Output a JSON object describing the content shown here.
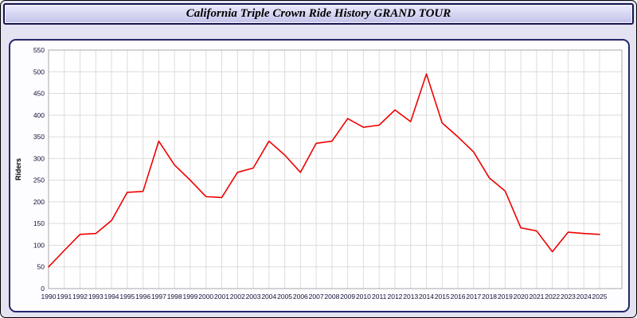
{
  "header": {
    "title": "California Triple Crown Ride History GRAND TOUR"
  },
  "colors": {
    "page_background": "#e3e3f2",
    "panel_border": "#26266b",
    "line": "#ee0000",
    "grid": "#dcdcdc",
    "plot_border": "#a8a8a8",
    "axis_text": "#101038"
  },
  "chart_data": {
    "type": "line",
    "title": "California Triple Crown Ride History GRAND TOUR",
    "xlabel": "",
    "ylabel": "Riders",
    "x": [
      1990,
      1991,
      1992,
      1993,
      1994,
      1995,
      1996,
      1997,
      1998,
      1999,
      2000,
      2001,
      2002,
      2003,
      2004,
      2005,
      2006,
      2007,
      2008,
      2009,
      2010,
      2011,
      2012,
      2013,
      2014,
      2015,
      2016,
      2017,
      2018,
      2019,
      2020,
      2021,
      2022,
      2023,
      2024,
      2025
    ],
    "series": [
      {
        "name": "Riders",
        "color": "#ee0000",
        "values": [
          50,
          88,
          125,
          127,
          157,
          222,
          224,
          340,
          285,
          250,
          212,
          210,
          268,
          278,
          340,
          308,
          268,
          335,
          340,
          392,
          372,
          377,
          412,
          385,
          495,
          382,
          350,
          315,
          255,
          225,
          140,
          133,
          85,
          130,
          127,
          125
        ]
      }
    ],
    "ylim": [
      0,
      550
    ],
    "ytick_step": 50,
    "grid": true,
    "legend_position": "none"
  }
}
